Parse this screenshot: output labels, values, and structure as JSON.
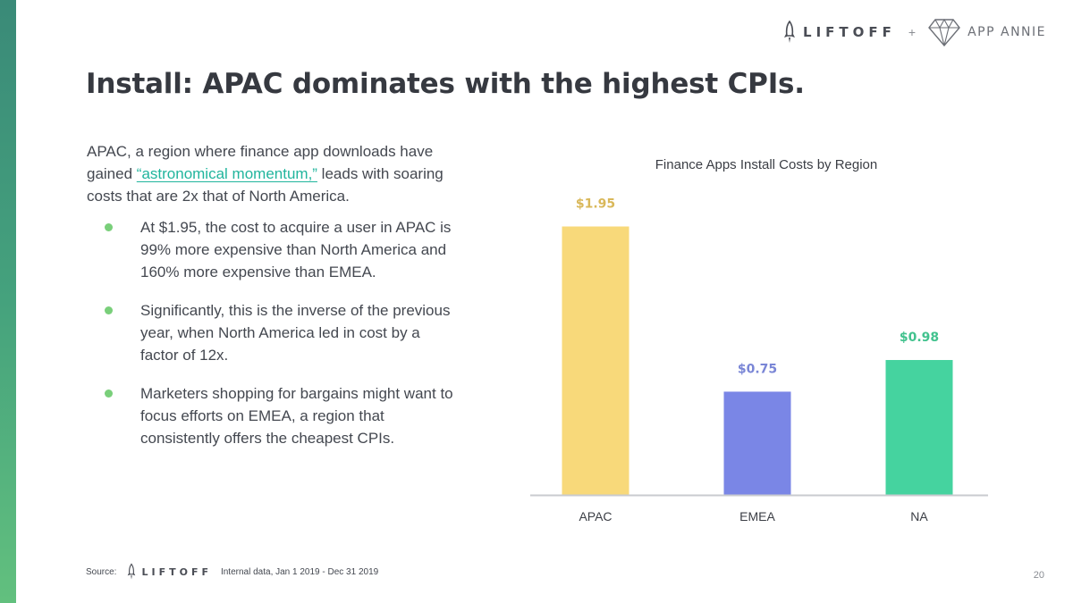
{
  "header": {
    "liftoff_logo_text": "LIFTOFF",
    "plus": "+",
    "appannie_logo_text": "APP ANNIE"
  },
  "title": "Install: APAC dominates with the highest CPIs.",
  "intro": {
    "before": "APAC, a region where finance app downloads have gained ",
    "link": "“astronomical momentum,”",
    "after": " leads with soaring costs that are 2x that of North America."
  },
  "bullets": [
    "At $1.95, the cost to acquire a user in APAC is 99% more expensive than North America and 160% more expensive than EMEA.",
    "Significantly, this is the inverse of the previous year, when North America led in cost by a factor of 12x.",
    "Marketers shopping for bargains might want to focus efforts on EMEA, a region that consistently offers the cheapest CPIs."
  ],
  "chart_data": {
    "type": "bar",
    "title": "Finance Apps Install Costs by Region",
    "categories": [
      "APAC",
      "EMEA",
      "NA"
    ],
    "values": [
      1.95,
      0.75,
      0.98
    ],
    "data_labels": [
      "$1.95",
      "$0.75",
      "$0.98"
    ],
    "colors": [
      "#f8d97a",
      "#7a86e6",
      "#45d39f"
    ],
    "label_colors": [
      "#d9b85a",
      "#7a86d6",
      "#42c28e"
    ],
    "ylim": [
      0,
      2.2
    ],
    "xlabel": "",
    "ylabel": "",
    "grid": false
  },
  "footer": {
    "source_label": "Source:",
    "source_logo_text": "LIFTOFF",
    "source_text": "Internal data, Jan 1 2019 - Dec 31 2019",
    "page_number": "20"
  }
}
